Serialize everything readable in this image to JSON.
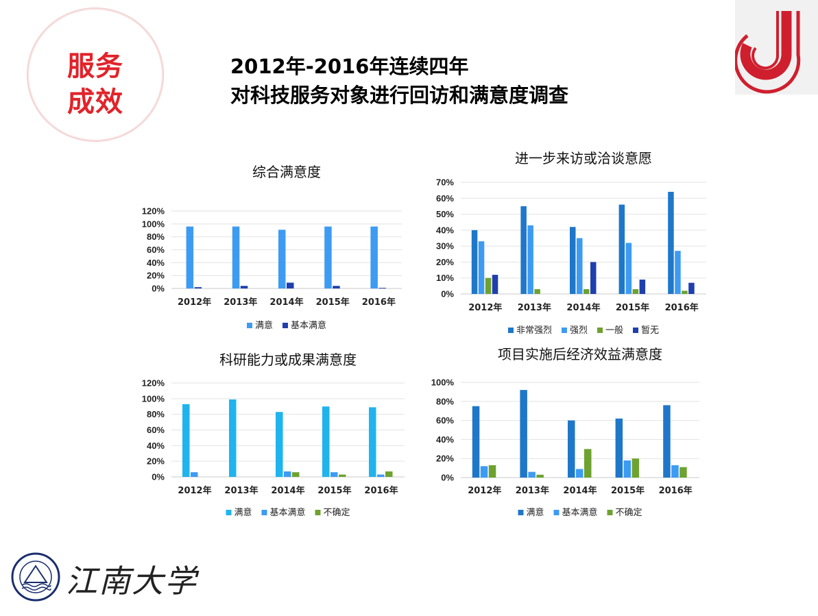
{
  "badge": {
    "line1": "服务",
    "line2": "成效"
  },
  "header": {
    "line1": "2012年-2016年连续四年",
    "line2": "对科技服务对象进行回访和满意度调查"
  },
  "footer": {
    "university_name": "江南大学"
  },
  "colors": {
    "accent_red": "#e1232a",
    "blue_light": "#3d9bf2",
    "blue_dark": "#1f3fae",
    "blue_mid": "#1f77c9",
    "green": "#6ea230",
    "cyan": "#1fb4ee"
  },
  "chart_data": [
    {
      "id": "c1",
      "type": "bar",
      "title": "综合满意度",
      "categories": [
        "2012年",
        "2013年",
        "2014年",
        "2015年",
        "2016年"
      ],
      "ylim": [
        0,
        120
      ],
      "yticks": [
        0,
        20,
        40,
        60,
        80,
        100,
        120
      ],
      "ytick_labels": [
        "0%",
        "20%",
        "40%",
        "60%",
        "80%",
        "100%",
        "120%"
      ],
      "grid": true,
      "legend": "bottom",
      "series": [
        {
          "name": "满意",
          "color": "#3d9bf2",
          "values": [
            96,
            96,
            91,
            96,
            96
          ]
        },
        {
          "name": "基本满意",
          "color": "#1f3fae",
          "values": [
            2,
            4,
            9,
            4,
            1
          ]
        }
      ]
    },
    {
      "id": "c2",
      "type": "bar",
      "title": "进一步来访或洽谈意愿",
      "categories": [
        "2012年",
        "2013年",
        "2014年",
        "2015年",
        "2016年"
      ],
      "ylim": [
        0,
        70
      ],
      "yticks": [
        0,
        10,
        20,
        30,
        40,
        50,
        60,
        70
      ],
      "ytick_labels": [
        "0%",
        "10%",
        "20%",
        "30%",
        "40%",
        "50%",
        "60%",
        "70%"
      ],
      "grid": true,
      "legend": "bottom",
      "series": [
        {
          "name": "非常强烈",
          "color": "#1f77c9",
          "values": [
            40,
            55,
            42,
            56,
            64
          ]
        },
        {
          "name": "强烈",
          "color": "#3d9bf2",
          "values": [
            33,
            43,
            35,
            32,
            27
          ]
        },
        {
          "name": "一般",
          "color": "#6ea230",
          "values": [
            10,
            3,
            3,
            3,
            2
          ]
        },
        {
          "name": "暂无",
          "color": "#1f3fae",
          "values": [
            12,
            0,
            20,
            9,
            7
          ]
        }
      ]
    },
    {
      "id": "c3",
      "type": "bar",
      "title": "科研能力或成果满意度",
      "categories": [
        "2012年",
        "2013年",
        "2014年",
        "2015年",
        "2016年"
      ],
      "ylim": [
        0,
        120
      ],
      "yticks": [
        0,
        20,
        40,
        60,
        80,
        100,
        120
      ],
      "ytick_labels": [
        "0%",
        "20%",
        "40%",
        "60%",
        "80%",
        "100%",
        "120%"
      ],
      "grid": true,
      "legend": "bottom",
      "series": [
        {
          "name": "满意",
          "color": "#1fb4ee",
          "values": [
            93,
            99,
            83,
            90,
            89
          ]
        },
        {
          "name": "基本满意",
          "color": "#3d9bf2",
          "values": [
            6,
            0,
            7,
            6,
            3
          ]
        },
        {
          "name": "不确定",
          "color": "#6ea230",
          "values": [
            0,
            0,
            6,
            3,
            7
          ]
        }
      ]
    },
    {
      "id": "c4",
      "type": "bar",
      "title": "项目实施后经济效益满意度",
      "categories": [
        "2012年",
        "2013年",
        "2014年",
        "2015年",
        "2016年"
      ],
      "ylim": [
        0,
        100
      ],
      "yticks": [
        0,
        20,
        40,
        60,
        80,
        100
      ],
      "ytick_labels": [
        "0%",
        "20%",
        "40%",
        "60%",
        "80%",
        "100%"
      ],
      "grid": true,
      "legend": "bottom",
      "series": [
        {
          "name": "满意",
          "color": "#1f77c9",
          "values": [
            75,
            92,
            60,
            62,
            76
          ]
        },
        {
          "name": "基本满意",
          "color": "#3d9bf2",
          "values": [
            12,
            6,
            9,
            18,
            13
          ]
        },
        {
          "name": "不确定",
          "color": "#6ea230",
          "values": [
            13,
            3,
            30,
            20,
            11
          ]
        }
      ]
    }
  ]
}
